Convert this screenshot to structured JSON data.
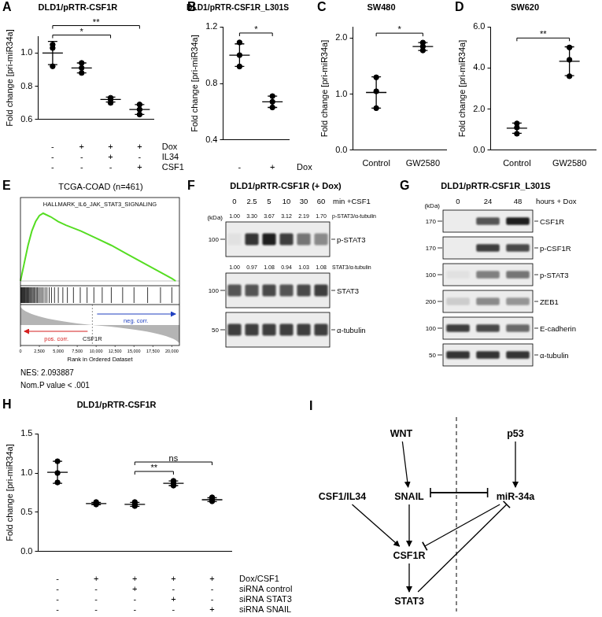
{
  "chart_data": [
    {
      "panel": "A",
      "type": "scatter",
      "title": "DLD1/pRTR-CSF1R",
      "y_label": "Fold change [pri-miR34a]",
      "categories": [
        null,
        null,
        null,
        null
      ],
      "points": [
        [
          0.92,
          1.03,
          1.05
        ],
        [
          0.88,
          0.94,
          0.91
        ],
        [
          0.7,
          0.72,
          0.73
        ],
        [
          0.63,
          0.66,
          0.69
        ]
      ],
      "values": [
        1.0,
        0.91,
        0.72,
        0.66
      ],
      "errors": [
        0.07,
        0.03,
        0.015,
        0.03
      ],
      "conditions": [
        {
          "label": "Dox",
          "values": [
            "-",
            "+",
            "+",
            "+"
          ]
        },
        {
          "label": "IL34",
          "values": [
            "-",
            "-",
            "+",
            "-"
          ]
        },
        {
          "label": "CSF1",
          "values": [
            "-",
            "-",
            "-",
            "+"
          ]
        }
      ],
      "significance": [
        {
          "from": 0,
          "to": 2,
          "label": "*"
        },
        {
          "from": 0,
          "to": 3,
          "label": "**"
        }
      ],
      "ylim": [
        0.6,
        1.1
      ],
      "yticks": [
        0.6,
        0.8,
        {
          "value": 1,
          "label": "1.0"
        }
      ],
      "color": "#000000",
      "marker": "circle",
      "grid": false
    },
    {
      "panel": "B",
      "type": "scatter",
      "title": "DLD1/pRTR-CSF1R_L301S",
      "y_label": "Fold change [pri-miR34a]",
      "categories": [
        null,
        null
      ],
      "points": [
        [
          0.92,
          1.0,
          1.09
        ],
        [
          0.63,
          0.67,
          0.71
        ]
      ],
      "values": [
        1.0,
        0.67
      ],
      "errors": [
        0.08,
        0.04
      ],
      "conditions": [
        {
          "label": "Dox",
          "values": [
            "-",
            "+"
          ]
        }
      ],
      "significance": [
        {
          "from": 0,
          "to": 1,
          "label": "*"
        }
      ],
      "ylim": [
        0.4,
        1.2
      ],
      "yticks": [
        0.4,
        0.8,
        1.2
      ],
      "color": "#000000",
      "marker": "circle",
      "grid": false
    },
    {
      "panel": "C",
      "type": "scatter",
      "title": "SW480",
      "y_label": "Fold change [pri-miR34a]",
      "categories": [
        "Control",
        "GW2580"
      ],
      "points": [
        [
          0.75,
          1.05,
          1.3
        ],
        [
          1.78,
          1.85,
          1.92
        ]
      ],
      "values": [
        1.03,
        1.85
      ],
      "errors": [
        0.28,
        0.07
      ],
      "significance": [
        {
          "from": 0,
          "to": 1,
          "label": "*"
        }
      ],
      "ylim": [
        0,
        2.2
      ],
      "yticks": [
        {
          "value": 0,
          "label": "0.0"
        },
        {
          "value": 1,
          "label": "1.0"
        },
        {
          "value": 2,
          "label": "2.0"
        }
      ],
      "color": "#000000",
      "marker": "circle",
      "grid": false
    },
    {
      "panel": "D",
      "type": "scatter",
      "title": "SW620",
      "y_label": "Fold change [pri-miR34a]",
      "categories": [
        "Control",
        "GW2580"
      ],
      "points": [
        [
          0.8,
          1.1,
          1.3
        ],
        [
          3.6,
          4.4,
          5.0
        ]
      ],
      "values": [
        1.07,
        4.33
      ],
      "errors": [
        0.25,
        0.7
      ],
      "significance": [
        {
          "from": 0,
          "to": 1,
          "label": "**"
        }
      ],
      "ylim": [
        0,
        6
      ],
      "yticks": [
        {
          "value": 0,
          "label": "0.0"
        },
        {
          "value": 2,
          "label": "2.0"
        },
        {
          "value": 4,
          "label": "4.0"
        },
        {
          "value": 6,
          "label": "6.0"
        }
      ],
      "color": "#000000",
      "marker": "circle",
      "grid": false
    },
    {
      "panel": "H",
      "type": "scatter",
      "title": "DLD1/pRTR-CSF1R",
      "y_label": "Fold change [pri-miR34a]",
      "categories": [
        null,
        null,
        null,
        null,
        null
      ],
      "points": [
        [
          0.88,
          1.0,
          1.15
        ],
        [
          0.6,
          0.61,
          0.63
        ],
        [
          0.58,
          0.6,
          0.63
        ],
        [
          0.84,
          0.87,
          0.9
        ],
        [
          0.64,
          0.66,
          0.69
        ]
      ],
      "values": [
        1.01,
        0.61,
        0.6,
        0.87,
        0.66
      ],
      "errors": [
        0.14,
        0.015,
        0.025,
        0.03,
        0.025
      ],
      "conditions": [
        {
          "label": "Dox/CSF1",
          "values": [
            "-",
            "+",
            "+",
            "+",
            "+"
          ]
        },
        {
          "label": "siRNA control",
          "values": [
            "-",
            "-",
            "+",
            "-",
            "-"
          ]
        },
        {
          "label": "siRNA STAT3",
          "values": [
            "-",
            "-",
            "-",
            "+",
            "-"
          ]
        },
        {
          "label": "siRNA SNAIL",
          "values": [
            "-",
            "-",
            "-",
            "-",
            "+"
          ]
        }
      ],
      "significance": [
        {
          "from": 2,
          "to": 3,
          "label": "**"
        },
        {
          "from": 2,
          "to": 4,
          "label": "ns"
        }
      ],
      "ylim": [
        0,
        1.5
      ],
      "yticks": [
        {
          "value": 0,
          "label": "0.0"
        },
        0.5,
        {
          "value": 1,
          "label": "1.0"
        },
        1.5
      ],
      "color": "#000000",
      "marker": "circle",
      "grid": false
    }
  ],
  "gsea": {
    "panel": "E",
    "title": "TCGA-COAD (n=461)",
    "gene_set": "HALLMARK_IL6_JAK_STAT3_SIGNALING",
    "color": "#55dd22",
    "enrichment_curve": {
      "x": [
        0,
        500,
        1000,
        1500,
        2000,
        2500,
        3000,
        4000,
        5000,
        6000,
        8000,
        10000,
        12000,
        14000,
        16000,
        18000,
        20000,
        20500
      ],
      "y": [
        0,
        0.15,
        0.3,
        0.42,
        0.5,
        0.55,
        0.57,
        0.54,
        0.5,
        0.47,
        0.42,
        0.36,
        0.3,
        0.23,
        0.16,
        0.09,
        0.02,
        0
      ]
    },
    "hits": [
      60,
      120,
      180,
      250,
      330,
      400,
      470,
      560,
      640,
      720,
      800,
      900,
      980,
      1060,
      1150,
      1250,
      1350,
      1450,
      1560,
      1680,
      1800,
      1950,
      2100,
      2250,
      2400,
      2600,
      2800,
      3000,
      3250,
      3500,
      3800,
      4100,
      4500,
      5000,
      5600,
      6200,
      7000,
      7900,
      8800,
      9700,
      10800,
      12000,
      13500,
      15000,
      16800,
      18500,
      20000
    ],
    "zero_crossing": 9500,
    "left_label": "pos. corr.",
    "right_label": "neg. corr.",
    "center_label": "CSF1R",
    "xlim": [
      0,
      21000
    ],
    "xticks": [
      0,
      {
        "value": 2500,
        "label": "2,500"
      },
      {
        "value": 5000,
        "label": "5,000"
      },
      {
        "value": 7500,
        "label": "7,500"
      },
      {
        "value": 10000,
        "label": "10,000"
      },
      {
        "value": 12500,
        "label": "12,500"
      },
      {
        "value": 15000,
        "label": "15,000"
      },
      {
        "value": 17500,
        "label": "17,500"
      },
      {
        "value": 20000,
        "label": "20,000"
      }
    ],
    "x_label": "Rank in Ordered Dataset",
    "stats": [
      "NES: 2.093887",
      "Nom.P value < .001"
    ]
  },
  "blots": [
    {
      "panel": "F",
      "title": "DLD1/pRTR-CSF1R (+ Dox)",
      "lanes": [
        "0",
        "2.5",
        "5",
        "10",
        "30",
        "60"
      ],
      "lane_unit": "min +CSF1",
      "kda_header": "(kDa)",
      "rows": [
        {
          "label": "p-STAT3",
          "kda": "100",
          "quant_label": "p-STAT3/α-tubulin",
          "quant": [
            "1.00",
            "3.30",
            "3.67",
            "3.12",
            "2.19",
            "1.70"
          ],
          "intensity": [
            0.05,
            0.85,
            0.95,
            0.8,
            0.55,
            0.45
          ]
        },
        {
          "label": "STAT3",
          "kda": "100",
          "quant_label": "STAT3/α-tubulin",
          "quant": [
            "1.00",
            "0.97",
            "1.08",
            "0.94",
            "1.03",
            "1.08"
          ],
          "intensity": [
            0.7,
            0.7,
            0.75,
            0.7,
            0.75,
            0.8
          ]
        },
        {
          "label": "α-tubulin",
          "kda": "50",
          "intensity": [
            0.8,
            0.8,
            0.8,
            0.8,
            0.8,
            0.8
          ]
        }
      ]
    },
    {
      "panel": "G",
      "title": "DLD1/pRTR-CSF1R_L301S",
      "lanes": [
        "0",
        "24",
        "48"
      ],
      "lane_unit": "hours + Dox",
      "kda_header": "(kDa)",
      "rows": [
        {
          "label": "CSF1R",
          "kda": "170",
          "intensity": [
            0,
            0.7,
            0.95
          ]
        },
        {
          "label": "p-CSF1R",
          "kda": "170",
          "intensity": [
            0,
            0.8,
            0.75
          ]
        },
        {
          "label": "p-STAT3",
          "kda": "100",
          "intensity": [
            0.05,
            0.5,
            0.55
          ]
        },
        {
          "label": "ZEB1",
          "kda": "200",
          "intensity": [
            0.15,
            0.45,
            0.4
          ]
        },
        {
          "label": "E-cadherin",
          "kda": "100",
          "intensity": [
            0.8,
            0.75,
            0.6
          ]
        },
        {
          "label": "α-tubulin",
          "kda": "50",
          "intensity": [
            0.85,
            0.85,
            0.85
          ]
        }
      ]
    }
  ],
  "diagram": {
    "panel": "I",
    "nodes": [
      "WNT",
      "p53",
      "CSF1/IL34",
      "SNAIL",
      "miR-34a",
      "CSF1R",
      "STAT3"
    ],
    "edges": [
      {
        "from": "WNT",
        "to": "SNAIL",
        "type": "activation"
      },
      {
        "from": "p53",
        "to": "miR-34a",
        "type": "activation"
      },
      {
        "from": "SNAIL",
        "to": "miR-34a",
        "type": "inhibition"
      },
      {
        "from": "miR-34a",
        "to": "SNAIL",
        "type": "inhibition"
      },
      {
        "from": "CSF1/IL34",
        "to": "CSF1R",
        "type": "activation"
      },
      {
        "from": "SNAIL",
        "to": "CSF1R",
        "type": "activation"
      },
      {
        "from": "miR-34a",
        "to": "CSF1R",
        "type": "inhibition"
      },
      {
        "from": "CSF1R",
        "to": "STAT3",
        "type": "activation"
      },
      {
        "from": "STAT3",
        "to": "miR-34a",
        "type": "inhibition"
      }
    ]
  }
}
